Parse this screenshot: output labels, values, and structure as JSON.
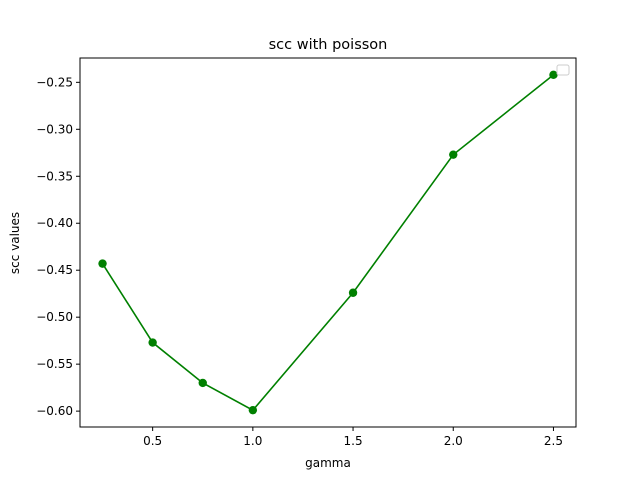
{
  "chart_data": {
    "type": "line",
    "title": "scc with poisson",
    "xlabel": "gamma",
    "ylabel": "scc values",
    "x": [
      0.25,
      0.5,
      0.75,
      1.0,
      1.5,
      2.0,
      2.5
    ],
    "series": [
      {
        "values": [
          -0.443,
          -0.527,
          -0.57,
          -0.599,
          -0.474,
          -0.327,
          -0.242
        ],
        "color": "#008000",
        "marker": "circle"
      }
    ],
    "xticks": [
      0.5,
      1.0,
      1.5,
      2.0,
      2.5
    ],
    "xtick_labels": [
      "0.5",
      "1.0",
      "1.5",
      "2.0",
      "2.5"
    ],
    "yticks": [
      -0.6,
      -0.55,
      -0.5,
      -0.45,
      -0.4,
      -0.35,
      -0.3,
      -0.25
    ],
    "ytick_labels": [
      "−0.60",
      "−0.55",
      "−0.50",
      "−0.45",
      "−0.40",
      "−0.35",
      "−0.30",
      "−0.25"
    ],
    "xlim": [
      0.1375,
      2.6125
    ],
    "ylim": [
      -0.6169,
      -0.2241
    ],
    "grid": false,
    "legend": "top-right"
  }
}
